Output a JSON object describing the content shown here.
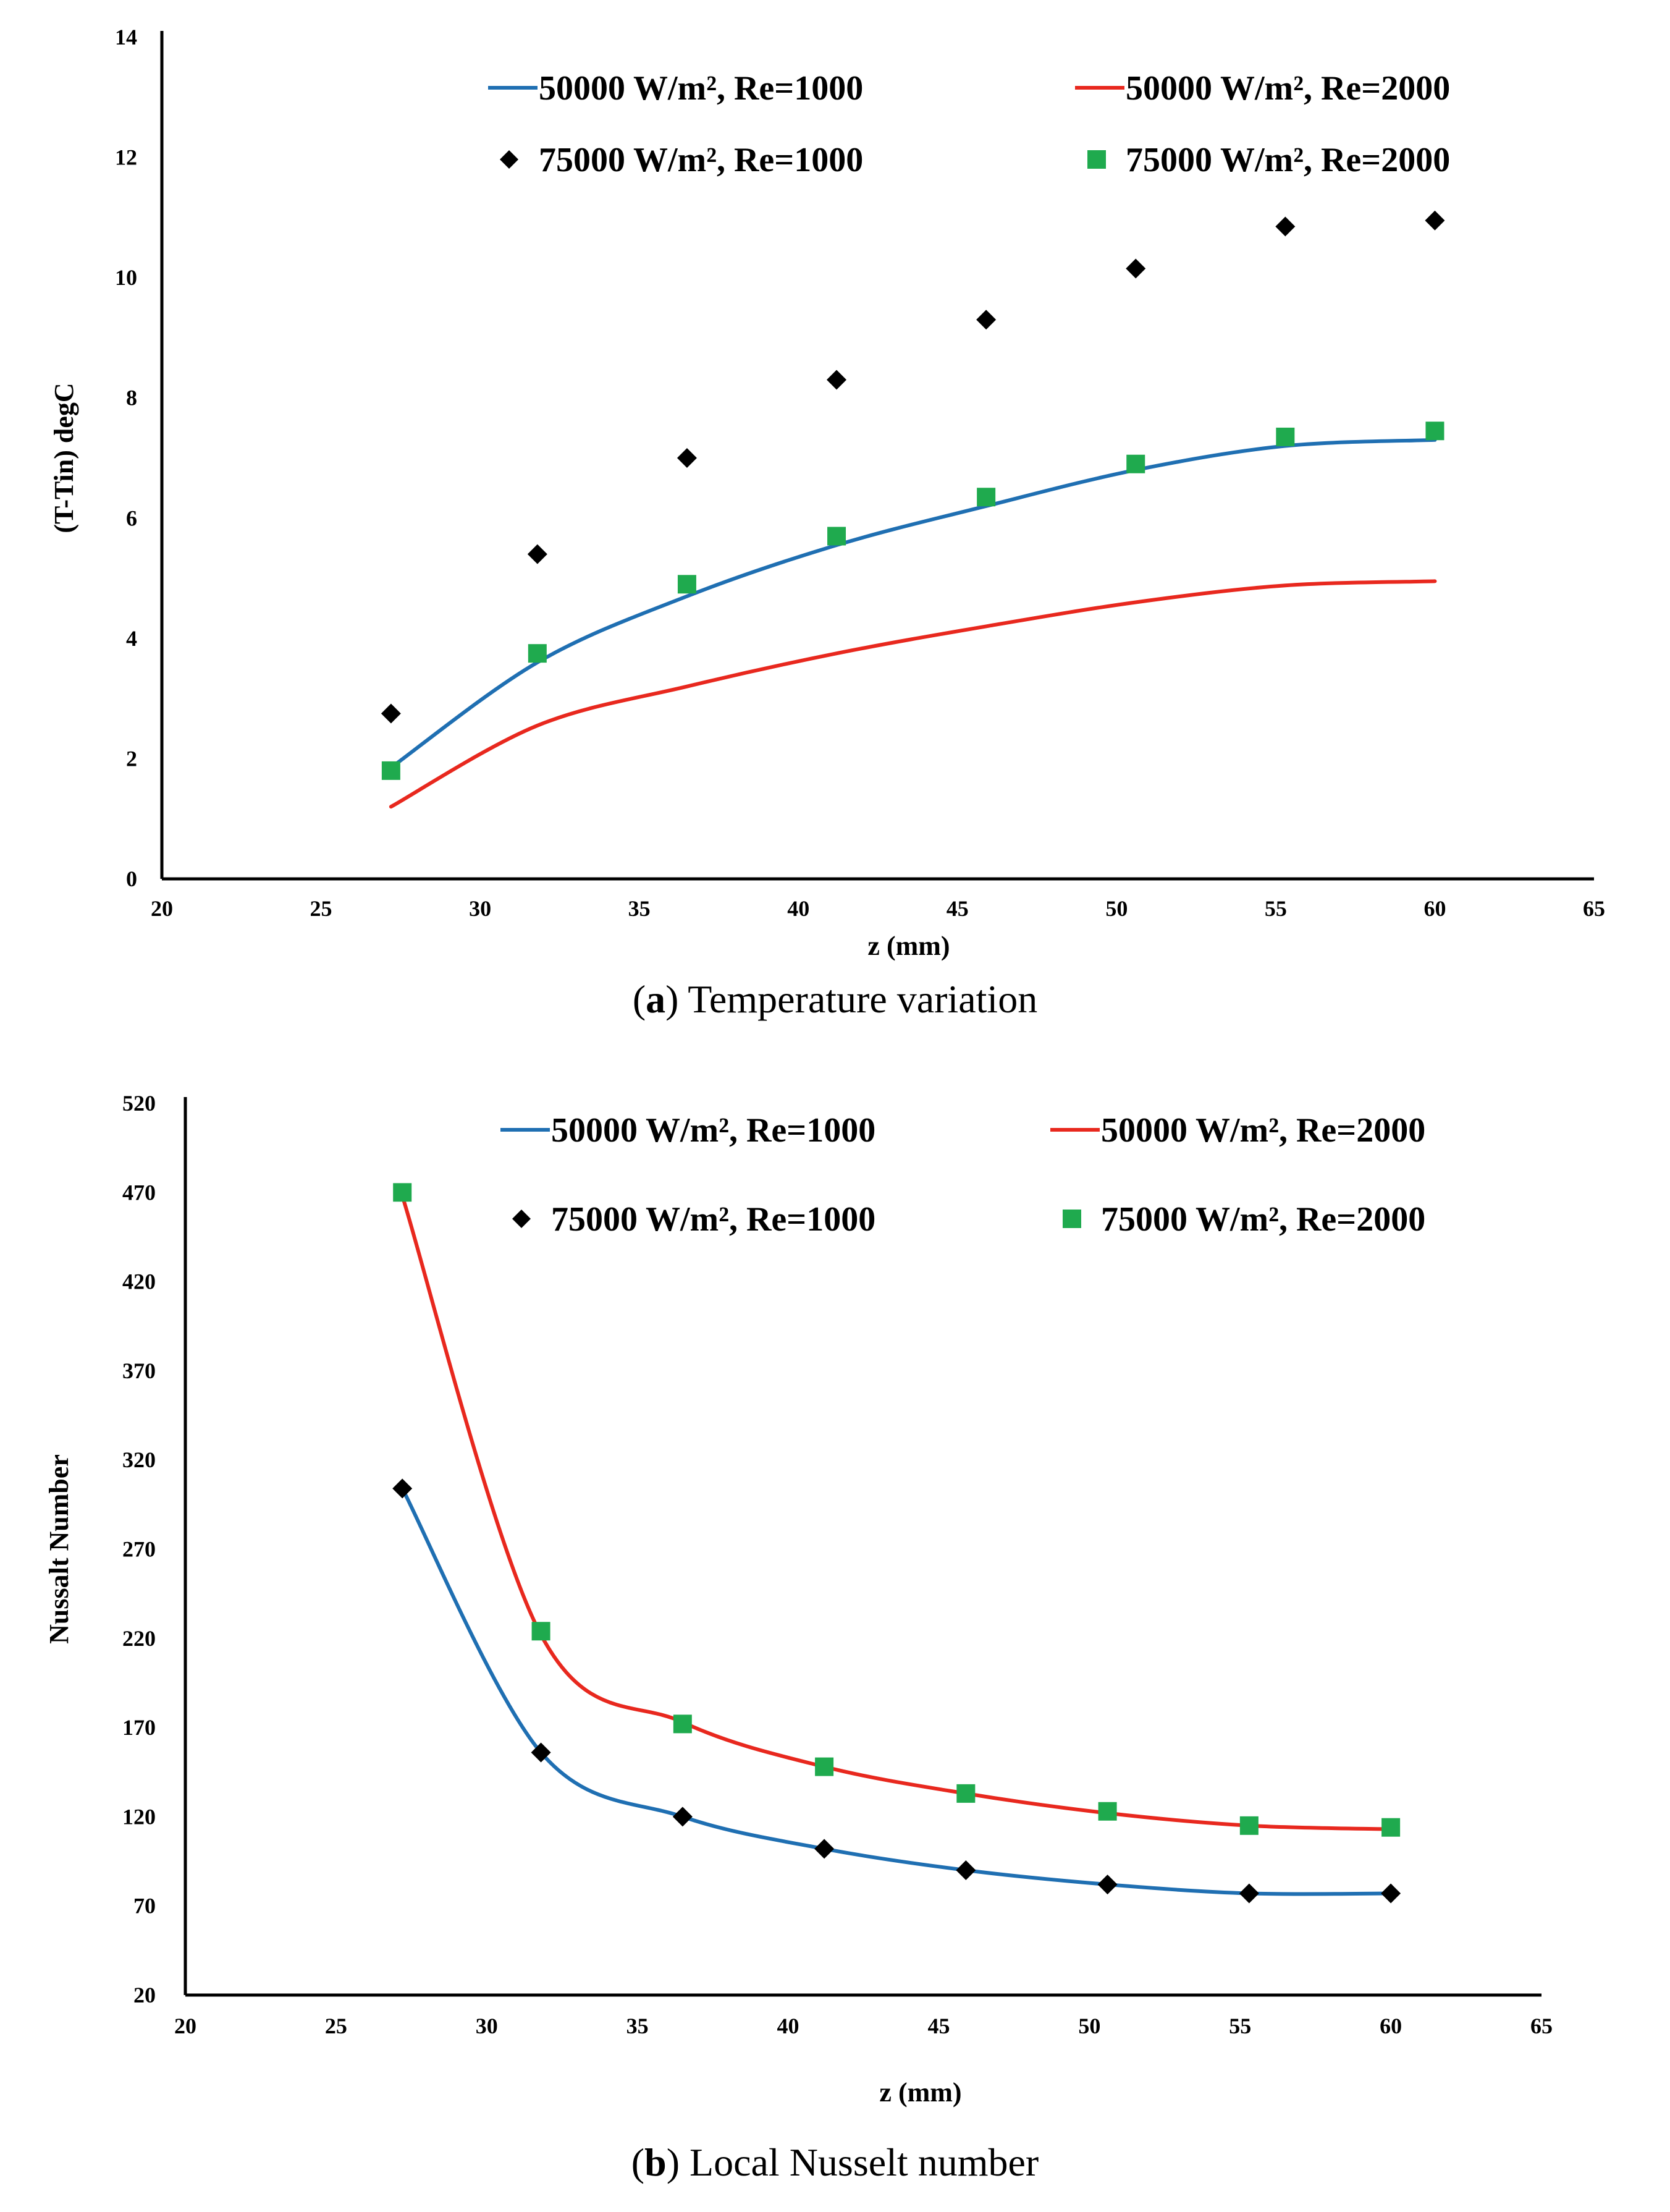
{
  "charts": [
    {
      "id": "a",
      "caption": {
        "letter": "a",
        "text": "Temperature variation"
      },
      "chart_data": {
        "type": "line",
        "title": "",
        "xlabel": "z (mm)",
        "ylabel": "(T-Tin) degC",
        "xlim": [
          20,
          65
        ],
        "ylim": [
          0,
          14
        ],
        "xticks": [
          20,
          25,
          30,
          35,
          40,
          45,
          50,
          55,
          60,
          65
        ],
        "yticks": [
          0,
          2,
          4,
          6,
          8,
          10,
          12,
          14
        ],
        "grid": false,
        "legend": "top",
        "series": [
          {
            "name": "50000 W/m², Re=1000",
            "kind": "line",
            "color": "#1f6fb2",
            "x": [
              27.2,
              31.8,
              36.5,
              41.2,
              45.9,
              50.6,
              55.3,
              60.0
            ],
            "y": [
              1.85,
              3.6,
              4.7,
              5.55,
              6.2,
              6.8,
              7.2,
              7.3
            ]
          },
          {
            "name": "50000 W/m², Re=2000",
            "kind": "line",
            "color": "#e8281e",
            "x": [
              27.2,
              31.8,
              36.5,
              41.2,
              45.9,
              50.6,
              55.3,
              60.0
            ],
            "y": [
              1.2,
              2.55,
              3.2,
              3.75,
              4.2,
              4.6,
              4.88,
              4.95
            ]
          },
          {
            "name": "75000 W/m², Re=1000",
            "kind": "diamond",
            "color": "#000000",
            "x": [
              27.2,
              31.8,
              36.5,
              41.2,
              45.9,
              50.6,
              55.3,
              60.0
            ],
            "y": [
              2.75,
              5.4,
              7.0,
              8.3,
              9.3,
              10.15,
              10.85,
              10.95
            ]
          },
          {
            "name": "75000 W/m², Re=2000",
            "kind": "square",
            "color": "#1faa4e",
            "x": [
              27.2,
              31.8,
              36.5,
              41.2,
              45.9,
              50.6,
              55.3,
              60.0
            ],
            "y": [
              1.8,
              3.75,
              4.9,
              5.7,
              6.35,
              6.9,
              7.35,
              7.45
            ]
          }
        ]
      }
    },
    {
      "id": "b",
      "caption": {
        "letter": "b",
        "text": "Local Nusselt number"
      },
      "chart_data": {
        "type": "line",
        "title": "",
        "xlabel": "z (mm)",
        "ylabel": "Nussalt Number",
        "xlim": [
          20,
          65
        ],
        "ylim": [
          20,
          520
        ],
        "xticks": [
          20,
          25,
          30,
          35,
          40,
          45,
          50,
          55,
          60,
          65
        ],
        "yticks": [
          20,
          70,
          120,
          170,
          220,
          270,
          320,
          370,
          420,
          470,
          520
        ],
        "grid": false,
        "legend": "top",
        "series": [
          {
            "name": "50000 W/m², Re=1000",
            "kind": "line",
            "color": "#1f6fb2",
            "x": [
              27.2,
              31.8,
              36.5,
              41.2,
              45.9,
              50.6,
              55.3,
              60.0
            ],
            "y": [
              304,
              156,
              120,
              102,
              90,
              82,
              77,
              77
            ]
          },
          {
            "name": "50000 W/m², Re=2000",
            "kind": "line",
            "color": "#e8281e",
            "x": [
              27.2,
              31.8,
              36.5,
              41.2,
              45.9,
              50.6,
              55.3,
              60.0
            ],
            "y": [
              468,
              222,
              173,
              148,
              133,
              122,
              115,
              113
            ]
          },
          {
            "name": "75000 W/m², Re=1000",
            "kind": "diamond",
            "color": "#000000",
            "x": [
              27.2,
              31.8,
              36.5,
              41.2,
              45.9,
              50.6,
              55.3,
              60.0
            ],
            "y": [
              304,
              156,
              120,
              102,
              90,
              82,
              77,
              77
            ]
          },
          {
            "name": "75000 W/m², Re=2000",
            "kind": "square",
            "color": "#1faa4e",
            "x": [
              27.2,
              31.8,
              36.5,
              41.2,
              45.9,
              50.6,
              55.3,
              60.0
            ],
            "y": [
              470,
              224,
              172,
              148,
              133,
              123,
              115,
              114
            ]
          }
        ]
      }
    }
  ]
}
